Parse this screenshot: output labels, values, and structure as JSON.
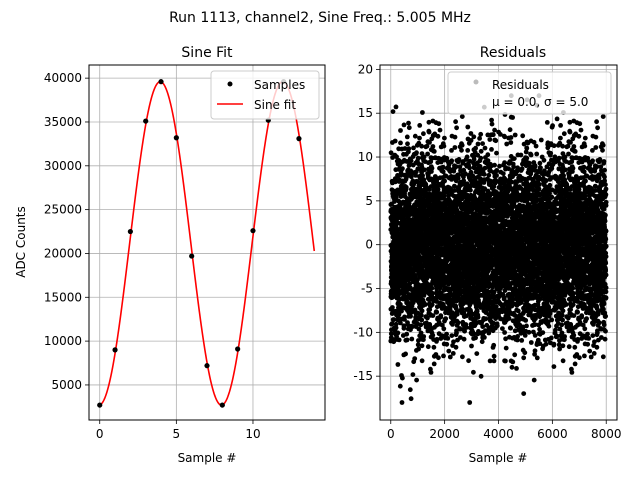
{
  "figure": {
    "suptitle": "Run 1113, channel2, Sine Freq.: 5.005 MHz"
  },
  "chart_data": [
    {
      "type": "line",
      "title": "Sine Fit",
      "xlabel": "Sample #",
      "ylabel": "ADC Counts",
      "xlim": [
        -0.7,
        14.7
      ],
      "ylim": [
        1000,
        41500
      ],
      "xticks": [
        0,
        5,
        10
      ],
      "yticks": [
        5000,
        10000,
        15000,
        20000,
        25000,
        30000,
        35000,
        40000
      ],
      "grid": true,
      "legend_position": "upper-right",
      "series": [
        {
          "name": "Samples",
          "kind": "scatter",
          "color": "#000000",
          "x": [
            0,
            1,
            2,
            3,
            4,
            5,
            6,
            7,
            8,
            9,
            10,
            11,
            12,
            13
          ],
          "y": [
            2700,
            9000,
            22500,
            35100,
            39600,
            33200,
            19700,
            7200,
            2700,
            9100,
            22600,
            35200,
            39600,
            33100
          ]
        },
        {
          "name": "Sine fit",
          "kind": "line",
          "color": "#ff0000",
          "model": {
            "offset": 21150,
            "amplitude": 18450,
            "period": 7.992,
            "peak_x": 3.95,
            "x_range": [
              0,
              14
            ]
          }
        }
      ]
    },
    {
      "type": "scatter",
      "title": "Residuals",
      "xlabel": "Sample #",
      "ylabel": "",
      "xlim": [
        -400,
        8400
      ],
      "ylim": [
        -20,
        20.5
      ],
      "xticks": [
        0,
        2000,
        4000,
        6000,
        8000
      ],
      "yticks": [
        -15,
        -10,
        -5,
        0,
        5,
        10,
        15,
        20
      ],
      "grid": true,
      "legend_position": "upper-right",
      "series": [
        {
          "name": "Residuals",
          "legend_text": "Residuals",
          "legend_stats": "μ = 0.0, σ = 5.0",
          "color": "#000000",
          "mean": 0.0,
          "std": 5.0,
          "n_points": 8000,
          "x_range": [
            0,
            7999
          ],
          "y_range": [
            -18,
            17
          ]
        }
      ]
    }
  ]
}
